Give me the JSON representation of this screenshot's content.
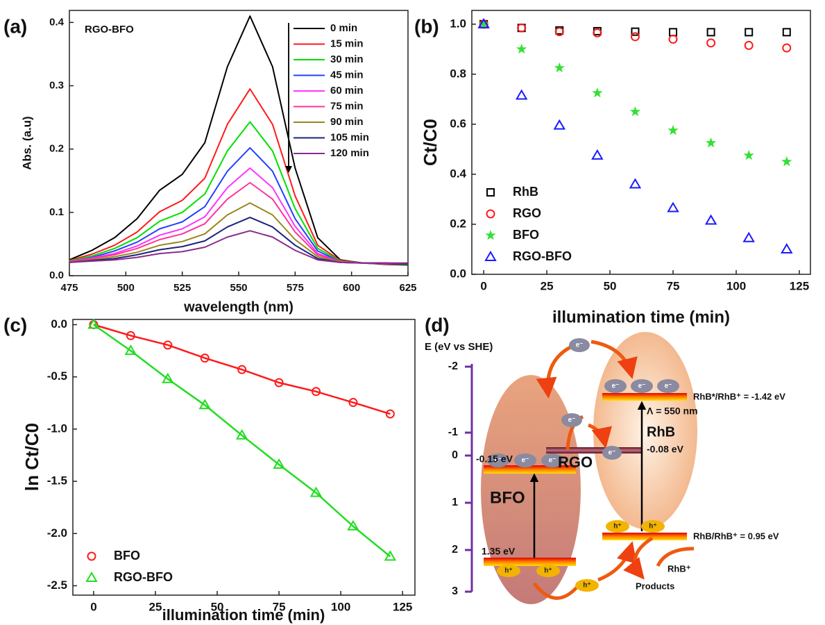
{
  "chart_data": [
    {
      "type": "line",
      "panel_label": "(a)",
      "annotation": "RGO-BFO",
      "xlabel": "wavelength (nm)",
      "ylabel": "Abs. (a.u)",
      "x": [
        475,
        485,
        495,
        505,
        515,
        525,
        535,
        545,
        555,
        565,
        575,
        585,
        595,
        605,
        615,
        625
      ],
      "xlim": [
        475,
        625
      ],
      "xticks": [
        475,
        500,
        525,
        550,
        575,
        600,
        625
      ],
      "ylim": [
        0,
        0.419
      ],
      "yticks": [
        {
          "value": 0,
          "label": "0.0"
        },
        0.1,
        0.2,
        0.3,
        0.4
      ],
      "legend": "upper right",
      "series": [
        {
          "name": "0 min",
          "color": "#000000",
          "values": [
            0.025,
            0.04,
            0.06,
            0.09,
            0.135,
            0.16,
            0.21,
            0.33,
            0.41,
            0.33,
            0.17,
            0.06,
            0.025,
            0.02,
            0.018,
            0.017
          ]
        },
        {
          "name": "15 min",
          "color": "#ff1a1a",
          "values": [
            0.024,
            0.034,
            0.048,
            0.069,
            0.101,
            0.119,
            0.154,
            0.239,
            0.295,
            0.239,
            0.126,
            0.048,
            0.024,
            0.02,
            0.019,
            0.018
          ]
        },
        {
          "name": "30 min",
          "color": "#00e000",
          "values": [
            0.023,
            0.031,
            0.043,
            0.06,
            0.086,
            0.1,
            0.129,
            0.197,
            0.243,
            0.197,
            0.106,
            0.043,
            0.023,
            0.02,
            0.019,
            0.018
          ]
        },
        {
          "name": "45 min",
          "color": "#2040ff",
          "values": [
            0.022,
            0.029,
            0.039,
            0.053,
            0.074,
            0.085,
            0.109,
            0.165,
            0.202,
            0.165,
            0.09,
            0.039,
            0.022,
            0.02,
            0.019,
            0.019
          ]
        },
        {
          "name": "60 min",
          "color": "#ff33ff",
          "values": [
            0.022,
            0.028,
            0.035,
            0.047,
            0.064,
            0.074,
            0.093,
            0.139,
            0.17,
            0.139,
            0.078,
            0.035,
            0.022,
            0.02,
            0.019,
            0.019
          ]
        },
        {
          "name": "75 min",
          "color": "#ff3399",
          "values": [
            0.022,
            0.027,
            0.033,
            0.043,
            0.057,
            0.066,
            0.082,
            0.121,
            0.147,
            0.121,
            0.069,
            0.033,
            0.022,
            0.02,
            0.019,
            0.019
          ]
        },
        {
          "name": "90 min",
          "color": "#99861a",
          "values": [
            0.021,
            0.025,
            0.03,
            0.037,
            0.048,
            0.054,
            0.066,
            0.096,
            0.115,
            0.096,
            0.057,
            0.03,
            0.021,
            0.02,
            0.02,
            0.019
          ]
        },
        {
          "name": "105 min",
          "color": "#1a237e",
          "values": [
            0.021,
            0.024,
            0.027,
            0.033,
            0.041,
            0.046,
            0.055,
            0.077,
            0.092,
            0.077,
            0.048,
            0.027,
            0.021,
            0.02,
            0.02,
            0.019
          ]
        },
        {
          "name": "120 min",
          "color": "#8b2b8b",
          "values": [
            0.021,
            0.023,
            0.025,
            0.029,
            0.035,
            0.038,
            0.045,
            0.061,
            0.071,
            0.061,
            0.04,
            0.025,
            0.021,
            0.02,
            0.02,
            0.02
          ]
        }
      ]
    },
    {
      "type": "scatter",
      "panel_label": "(b)",
      "xlabel": "illumination time (min)",
      "ylabel": "Ct/C0",
      "x": [
        0,
        15,
        30,
        45,
        60,
        75,
        90,
        105,
        120
      ],
      "xlim": [
        -4.7,
        129.4
      ],
      "xticks": [
        0,
        25,
        50,
        75,
        100,
        125
      ],
      "ylim": [
        0,
        1.055
      ],
      "yticks": [
        {
          "value": 0,
          "label": "0.0"
        },
        0.2,
        0.4,
        0.6,
        0.8,
        {
          "value": 1,
          "label": "1.0"
        }
      ],
      "legend": "lower left",
      "series": [
        {
          "name": "RhB",
          "color": "#000000",
          "marker": "square",
          "values": [
            1.0,
            0.985,
            0.975,
            0.972,
            0.97,
            0.968,
            0.968,
            0.968,
            0.968
          ]
        },
        {
          "name": "RGO",
          "color": "#ff1a1a",
          "marker": "circle",
          "values": [
            1.0,
            0.985,
            0.97,
            0.965,
            0.95,
            0.94,
            0.925,
            0.915,
            0.905
          ]
        },
        {
          "name": "BFO",
          "color": "#33e033",
          "marker": "star",
          "values": [
            1.0,
            0.9,
            0.825,
            0.725,
            0.65,
            0.575,
            0.525,
            0.475,
            0.45
          ]
        },
        {
          "name": "RGO-BFO",
          "color": "#1a1aff",
          "marker": "triangle",
          "values": [
            1.0,
            0.715,
            0.595,
            0.475,
            0.36,
            0.265,
            0.215,
            0.145,
            0.1
          ]
        }
      ]
    },
    {
      "type": "scatter",
      "panel_label": "(c)",
      "xlabel": "illumination time (min)",
      "ylabel": "ln Ct/C0",
      "x": [
        0,
        15,
        30,
        45,
        60,
        75,
        90,
        105,
        120
      ],
      "xlim": [
        -8.4,
        130
      ],
      "xticks": [
        0,
        25,
        50,
        75,
        100,
        125
      ],
      "ylim": [
        -2.59,
        0.05
      ],
      "yticks": [
        {
          "value": 0,
          "label": "0.0"
        },
        -0.5,
        {
          "value": -1,
          "label": "-1.0"
        },
        -1.5,
        {
          "value": -2,
          "label": "-2.0"
        },
        -2.5
      ],
      "legend": "lower left",
      "series": [
        {
          "name": "BFO",
          "color": "#ff1a1a",
          "marker": "circle",
          "line": true,
          "values": [
            0,
            -0.105,
            -0.195,
            -0.32,
            -0.43,
            -0.555,
            -0.64,
            -0.745,
            -0.855
          ]
        },
        {
          "name": "RGO-BFO",
          "color": "#22dd22",
          "marker": "triangle",
          "line": true,
          "values": [
            0,
            -0.25,
            -0.52,
            -0.77,
            -1.06,
            -1.34,
            -1.61,
            -1.93,
            -2.22
          ]
        }
      ]
    }
  ],
  "diagram": {
    "panel_label": "(d)",
    "axis_title": "E (eV vs SHE)",
    "energy_ticks": [
      -2,
      -1,
      0,
      1,
      2,
      3
    ],
    "bfo": "BFO",
    "rgo": "RGO",
    "rhb": "RhB",
    "bfo_cb": "-0.15 eV",
    "bfo_vb": "1.35 eV",
    "rgo_level": "-0.08 eV",
    "rhb_lumo": "RhB*/RhB⁺ = -1.42 eV",
    "wavelength": "Λ = 550 nm",
    "rhb_homo": "RhB/RhB⁺ = 0.95 eV",
    "rhb_plus": "RhB⁺",
    "products": "Products",
    "electron": "e⁻",
    "hole": "h⁺"
  }
}
